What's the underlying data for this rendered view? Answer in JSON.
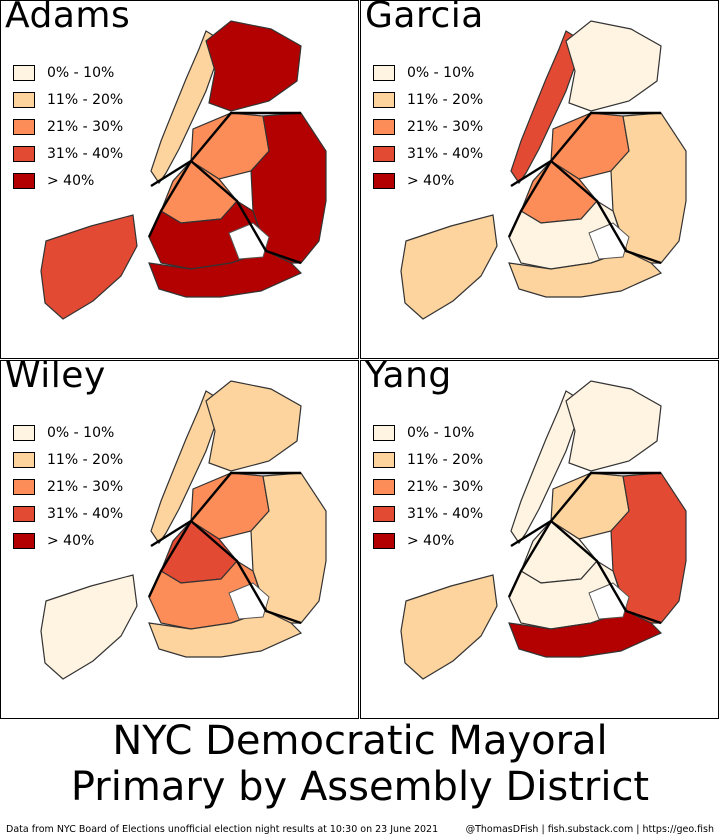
{
  "main_title_line1": "NYC Democratic Mayoral",
  "main_title_line2": "Primary by Assembly District",
  "source_note": "Data from NYC Board of Elections unofficial election night results at 10:30 on 23 June 2021",
  "credits": "@ThomasDFish | fish.substack.com | https://geo.fish",
  "legend": {
    "labels": [
      "0% - 10%",
      "11% - 20%",
      "21% - 30%",
      "31% - 40%",
      "> 40%"
    ],
    "colors": [
      "#fff4e2",
      "#fdd49e",
      "#fc8d59",
      "#e34a33",
      "#b30000"
    ]
  },
  "panels": [
    {
      "candidate": "Adams",
      "shading": {
        "manhattan": 1,
        "bronx": 4,
        "queens_west": 2,
        "queens_east": 4,
        "brooklyn_north": 2,
        "brooklyn_central": 4,
        "brooklyn_south": 4,
        "staten_island": 3
      }
    },
    {
      "candidate": "Garcia",
      "shading": {
        "manhattan": 3,
        "bronx": 0,
        "queens_west": 2,
        "queens_east": 1,
        "brooklyn_north": 2,
        "brooklyn_central": 0,
        "brooklyn_south": 1,
        "staten_island": 1
      }
    },
    {
      "candidate": "Wiley",
      "shading": {
        "manhattan": 1,
        "bronx": 1,
        "queens_west": 2,
        "queens_east": 1,
        "brooklyn_north": 3,
        "brooklyn_central": 2,
        "brooklyn_south": 1,
        "staten_island": 0
      }
    },
    {
      "candidate": "Yang",
      "shading": {
        "manhattan": 0,
        "bronx": 0,
        "queens_west": 1,
        "queens_east": 3,
        "brooklyn_north": 0,
        "brooklyn_central": 0,
        "brooklyn_south": 4,
        "staten_island": 1
      }
    }
  ]
}
